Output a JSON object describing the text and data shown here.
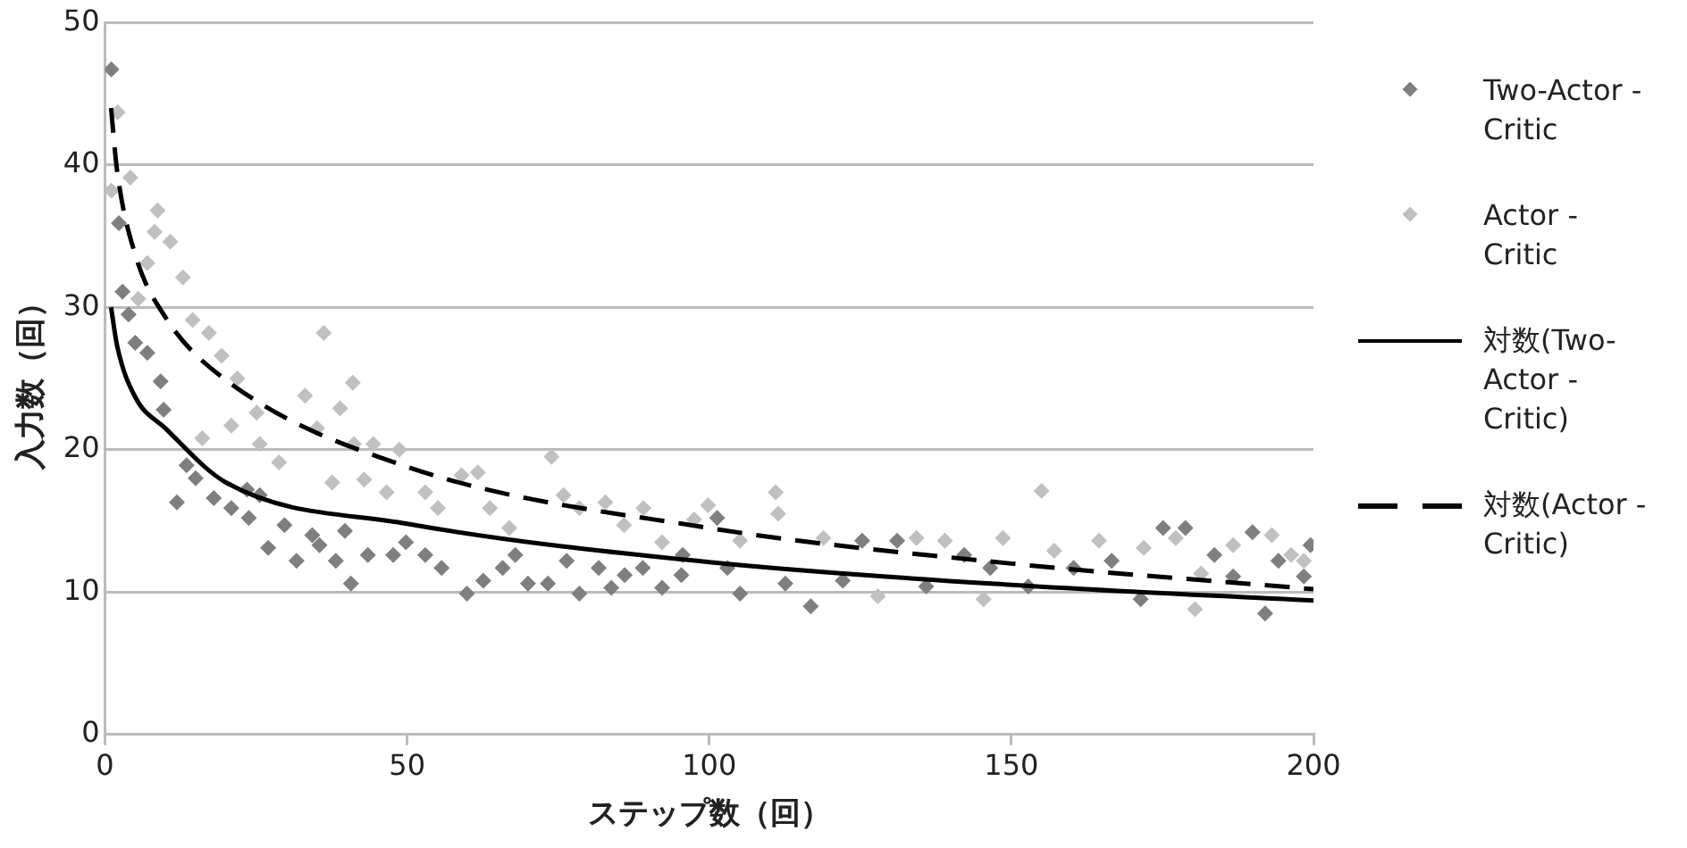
{
  "chart_data": {
    "type": "scatter",
    "xlabel": "ステップ数（回）",
    "ylabel": "入力数（回）",
    "xlim": [
      0,
      200
    ],
    "xticks": [
      0,
      50,
      100,
      150,
      200
    ],
    "ylim": [
      0,
      50
    ],
    "yticks": [
      0,
      10,
      20,
      30,
      40,
      50
    ],
    "grid": "y",
    "legend": "right",
    "marker": "diamond",
    "series": [
      {
        "name": "Two-Actor - Critic",
        "type": "scatter",
        "color": "#7f7f7f",
        "x": [
          1.05,
          2.3,
          2.9,
          3.9,
          5,
          7,
          9.2,
          9.7,
          11.9,
          13.5,
          15,
          18,
          20.9,
          23.5,
          25.6,
          23.8,
          27,
          29.7,
          31.7,
          34.3,
          35.5,
          38.2,
          40.7,
          39.7,
          43.5,
          47.7,
          49.8,
          53,
          55.7,
          59.9,
          62.6,
          65.8,
          67.9,
          70,
          73.3,
          76.4,
          78.5,
          81.7,
          83.8,
          86,
          89,
          92.2,
          95.4,
          95.6,
          101.3,
          105.1,
          103,
          112.6,
          116.8,
          122.1,
          125.3,
          131.1,
          135.9,
          142.2,
          146.5,
          152.8,
          160.3,
          166.6,
          171.4,
          175.1,
          178.8,
          183.6,
          186.7,
          189.9,
          192,
          194.2,
          199.5,
          198.4
        ],
        "values": [
          46.7,
          35.9,
          31.1,
          29.5,
          27.5,
          26.8,
          24.8,
          22.8,
          16.3,
          18.9,
          18,
          16.6,
          15.9,
          17.2,
          16.8,
          15.2,
          13.1,
          14.7,
          12.2,
          14,
          13.3,
          12.2,
          10.6,
          14.3,
          12.6,
          12.6,
          13.5,
          12.6,
          11.7,
          9.9,
          10.8,
          11.7,
          12.6,
          10.6,
          10.6,
          12.2,
          9.9,
          11.7,
          10.3,
          11.2,
          11.7,
          10.3,
          11.2,
          12.6,
          15.2,
          9.9,
          11.7,
          10.6,
          9,
          10.8,
          13.6,
          13.6,
          10.4,
          12.6,
          11.7,
          10.4,
          11.7,
          12.2,
          9.5,
          14.5,
          14.5,
          12.6,
          11.1,
          14.2,
          8.5,
          12.2,
          13.3,
          11.1
        ]
      },
      {
        "name": "Actor - Critic",
        "type": "scatter",
        "color": "#c0c0c0",
        "x": [
          2.1,
          1.05,
          4.2,
          8.7,
          8.2,
          10.8,
          7,
          12.9,
          5.5,
          14.5,
          17.2,
          19.3,
          21.9,
          16.1,
          20.9,
          25.1,
          25.6,
          28.8,
          33.1,
          36.2,
          35.1,
          38.9,
          41,
          37.6,
          41.2,
          44.4,
          42.9,
          46.6,
          48.7,
          53,
          55.1,
          59,
          61.7,
          63.7,
          66.9,
          73.9,
          75.9,
          78.5,
          82.8,
          85.9,
          89.1,
          92.2,
          97.5,
          99.8,
          111,
          111.4,
          105.1,
          118.9,
          127.9,
          134.3,
          139,
          145.4,
          148.6,
          155,
          157.1,
          164.5,
          171.9,
          177.2,
          180.4,
          181.4,
          186.7,
          193.1,
          196.3,
          198.4
        ],
        "values": [
          43.7,
          38.2,
          39.1,
          36.8,
          35.3,
          34.6,
          33.1,
          32.1,
          30.6,
          29.1,
          28.2,
          26.6,
          25,
          20.8,
          21.7,
          22.6,
          20.4,
          19.1,
          23.8,
          28.2,
          21.5,
          22.9,
          24.7,
          17.7,
          20.4,
          20.4,
          17.9,
          17,
          20,
          17,
          15.9,
          18.2,
          18.4,
          15.9,
          14.5,
          19.5,
          16.8,
          15.9,
          16.3,
          14.7,
          15.9,
          13.5,
          15.1,
          16.1,
          17,
          15.5,
          13.6,
          13.8,
          9.7,
          13.8,
          13.6,
          9.5,
          13.8,
          17.1,
          12.9,
          13.6,
          13.1,
          13.8,
          8.8,
          11.3,
          13.3,
          14,
          12.6,
          12.2
        ]
      },
      {
        "name": "対数(Two-Actor - Critic)",
        "type": "line",
        "color": "#000000",
        "marker": "none",
        "line_style": "solid",
        "x": [
          1,
          2,
          5,
          10,
          20,
          50,
          100,
          150,
          200
        ],
        "values": [
          30,
          27.3,
          23.7,
          21.5,
          17.7,
          14.8,
          12.1,
          10.5,
          9.4
        ]
      },
      {
        "name": "対数(Actor - Critic)",
        "type": "line",
        "color": "#000000",
        "marker": "none",
        "line_style": "dashed",
        "x": [
          1,
          2,
          5,
          10,
          20,
          50,
          100,
          150,
          200
        ],
        "values": [
          44,
          39.6,
          33.7,
          29.3,
          24.9,
          18.8,
          14.5,
          12,
          10.2
        ]
      }
    ]
  }
}
